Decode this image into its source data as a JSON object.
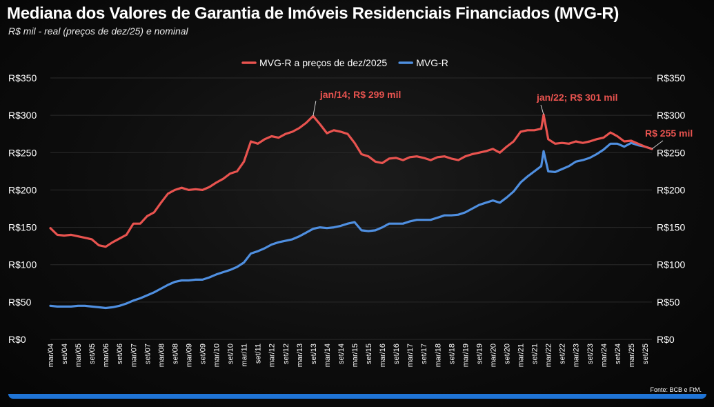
{
  "header": {
    "title": "Mediana dos Valores de Garantia de Imóveis Residenciais Financiados (MVG-R)",
    "subtitle": "R$ mil - real (preços de dez/25) e nominal"
  },
  "footer": {
    "source": "Fonte: BCB e FtM."
  },
  "colors": {
    "real": "#e8534f",
    "nominal": "#4f8fe0",
    "accent_bar": "#1f74d6"
  },
  "chart_data": {
    "type": "line",
    "title": "Mediana dos Valores de Garantia de Imóveis Residenciais Financiados (MVG-R)",
    "subtitle": "R$ mil - real (preços de dez/25) e nominal",
    "xlabel": "",
    "ylabel": "",
    "ylim": [
      0,
      350
    ],
    "yticks": [
      "R$0",
      "R$50",
      "R$100",
      "R$150",
      "R$200",
      "R$250",
      "R$300",
      "R$350"
    ],
    "yticks_values": [
      0,
      50,
      100,
      150,
      200,
      250,
      300,
      350
    ],
    "xlim": [
      "mar/04",
      "dez/25"
    ],
    "xticks": [
      "mar/04",
      "set/04",
      "mar/05",
      "set/05",
      "mar/06",
      "set/06",
      "mar/07",
      "set/07",
      "mar/08",
      "set/08",
      "mar/09",
      "set/09",
      "mar/10",
      "set/10",
      "mar/11",
      "set/11",
      "mar/12",
      "set/12",
      "mar/13",
      "set/13",
      "mar/14",
      "set/14",
      "mar/15",
      "set/15",
      "mar/16",
      "set/16",
      "mar/17",
      "set/17",
      "mar/18",
      "set/18",
      "mar/19",
      "set/19",
      "mar/20",
      "set/20",
      "mar/21",
      "set/21",
      "mar/22",
      "set/22",
      "mar/23",
      "set/23",
      "mar/24",
      "set/24",
      "mar/25",
      "set/25"
    ],
    "grid": true,
    "legend_position": "top-center",
    "series": [
      {
        "name": "MVG-R a preços de dez/2025",
        "color": "#e8534f",
        "points": [
          [
            "mar/04",
            149
          ],
          [
            "jun/04",
            140
          ],
          [
            "set/04",
            139
          ],
          [
            "dez/04",
            140
          ],
          [
            "mar/05",
            138
          ],
          [
            "jun/05",
            136
          ],
          [
            "set/05",
            134
          ],
          [
            "dez/05",
            126
          ],
          [
            "mar/06",
            124
          ],
          [
            "jun/06",
            130
          ],
          [
            "set/06",
            135
          ],
          [
            "dez/06",
            140
          ],
          [
            "mar/07",
            155
          ],
          [
            "jun/07",
            155
          ],
          [
            "set/07",
            165
          ],
          [
            "dez/07",
            170
          ],
          [
            "mar/08",
            183
          ],
          [
            "jun/08",
            195
          ],
          [
            "set/08",
            200
          ],
          [
            "dez/08",
            203
          ],
          [
            "mar/09",
            200
          ],
          [
            "jun/09",
            201
          ],
          [
            "set/09",
            200
          ],
          [
            "dez/09",
            204
          ],
          [
            "mar/10",
            210
          ],
          [
            "jun/10",
            215
          ],
          [
            "set/10",
            222
          ],
          [
            "dez/10",
            225
          ],
          [
            "mar/11",
            238
          ],
          [
            "jun/11",
            265
          ],
          [
            "set/11",
            262
          ],
          [
            "dez/11",
            268
          ],
          [
            "mar/12",
            272
          ],
          [
            "jun/12",
            270
          ],
          [
            "set/12",
            275
          ],
          [
            "dez/12",
            278
          ],
          [
            "mar/13",
            283
          ],
          [
            "jun/13",
            290
          ],
          [
            "set/13",
            299
          ],
          [
            "dez/13",
            288
          ],
          [
            "mar/14",
            276
          ],
          [
            "jun/14",
            280
          ],
          [
            "set/14",
            278
          ],
          [
            "dez/14",
            275
          ],
          [
            "mar/15",
            263
          ],
          [
            "jun/15",
            248
          ],
          [
            "set/15",
            245
          ],
          [
            "dez/15",
            238
          ],
          [
            "mar/16",
            236
          ],
          [
            "jun/16",
            242
          ],
          [
            "set/16",
            243
          ],
          [
            "dez/16",
            240
          ],
          [
            "mar/17",
            244
          ],
          [
            "jun/17",
            245
          ],
          [
            "set/17",
            243
          ],
          [
            "dez/17",
            240
          ],
          [
            "mar/18",
            244
          ],
          [
            "jun/18",
            245
          ],
          [
            "set/18",
            242
          ],
          [
            "dez/18",
            240
          ],
          [
            "mar/19",
            245
          ],
          [
            "jun/19",
            248
          ],
          [
            "set/19",
            250
          ],
          [
            "dez/19",
            252
          ],
          [
            "mar/20",
            255
          ],
          [
            "jun/20",
            250
          ],
          [
            "set/20",
            258
          ],
          [
            "dez/20",
            265
          ],
          [
            "mar/21",
            278
          ],
          [
            "jun/21",
            280
          ],
          [
            "set/21",
            280
          ],
          [
            "dez/21",
            282
          ],
          [
            "jan/22",
            301
          ],
          [
            "mar/22",
            268
          ],
          [
            "jun/22",
            262
          ],
          [
            "set/22",
            263
          ],
          [
            "dez/22",
            262
          ],
          [
            "mar/23",
            265
          ],
          [
            "jun/23",
            263
          ],
          [
            "set/23",
            265
          ],
          [
            "dez/23",
            268
          ],
          [
            "mar/24",
            270
          ],
          [
            "jun/24",
            277
          ],
          [
            "set/24",
            272
          ],
          [
            "dez/24",
            265
          ],
          [
            "mar/25",
            266
          ],
          [
            "jun/25",
            262
          ],
          [
            "set/25",
            258
          ],
          [
            "dez/25",
            255
          ]
        ]
      },
      {
        "name": "MVG-R",
        "color": "#4f8fe0",
        "points": [
          [
            "mar/04",
            45
          ],
          [
            "jun/04",
            44
          ],
          [
            "set/04",
            44
          ],
          [
            "dez/04",
            44
          ],
          [
            "mar/05",
            45
          ],
          [
            "jun/05",
            45
          ],
          [
            "set/05",
            44
          ],
          [
            "dez/05",
            43
          ],
          [
            "mar/06",
            42
          ],
          [
            "jun/06",
            43
          ],
          [
            "set/06",
            45
          ],
          [
            "dez/06",
            48
          ],
          [
            "mar/07",
            52
          ],
          [
            "jun/07",
            55
          ],
          [
            "set/07",
            59
          ],
          [
            "dez/07",
            63
          ],
          [
            "mar/08",
            68
          ],
          [
            "jun/08",
            73
          ],
          [
            "set/08",
            77
          ],
          [
            "dez/08",
            79
          ],
          [
            "mar/09",
            79
          ],
          [
            "jun/09",
            80
          ],
          [
            "set/09",
            80
          ],
          [
            "dez/09",
            83
          ],
          [
            "mar/10",
            87
          ],
          [
            "jun/10",
            90
          ],
          [
            "set/10",
            93
          ],
          [
            "dez/10",
            97
          ],
          [
            "mar/11",
            103
          ],
          [
            "jun/11",
            115
          ],
          [
            "set/11",
            118
          ],
          [
            "dez/11",
            122
          ],
          [
            "mar/12",
            127
          ],
          [
            "jun/12",
            130
          ],
          [
            "set/12",
            132
          ],
          [
            "dez/12",
            134
          ],
          [
            "mar/13",
            138
          ],
          [
            "jun/13",
            143
          ],
          [
            "set/13",
            148
          ],
          [
            "dez/13",
            150
          ],
          [
            "mar/14",
            149
          ],
          [
            "jun/14",
            150
          ],
          [
            "set/14",
            152
          ],
          [
            "dez/14",
            155
          ],
          [
            "mar/15",
            157
          ],
          [
            "jun/15",
            146
          ],
          [
            "set/15",
            145
          ],
          [
            "dez/15",
            146
          ],
          [
            "mar/16",
            150
          ],
          [
            "jun/16",
            155
          ],
          [
            "set/16",
            155
          ],
          [
            "dez/16",
            155
          ],
          [
            "mar/17",
            158
          ],
          [
            "jun/17",
            160
          ],
          [
            "set/17",
            160
          ],
          [
            "dez/17",
            160
          ],
          [
            "mar/18",
            163
          ],
          [
            "jun/18",
            166
          ],
          [
            "set/18",
            166
          ],
          [
            "dez/18",
            167
          ],
          [
            "mar/19",
            170
          ],
          [
            "jun/19",
            175
          ],
          [
            "set/19",
            180
          ],
          [
            "dez/19",
            183
          ],
          [
            "mar/20",
            186
          ],
          [
            "jun/20",
            183
          ],
          [
            "set/20",
            190
          ],
          [
            "dez/20",
            198
          ],
          [
            "mar/21",
            210
          ],
          [
            "jun/21",
            218
          ],
          [
            "set/21",
            225
          ],
          [
            "dez/21",
            232
          ],
          [
            "jan/22",
            252
          ],
          [
            "mar/22",
            225
          ],
          [
            "jun/22",
            224
          ],
          [
            "set/22",
            228
          ],
          [
            "dez/22",
            232
          ],
          [
            "mar/23",
            238
          ],
          [
            "jun/23",
            240
          ],
          [
            "set/23",
            243
          ],
          [
            "dez/23",
            248
          ],
          [
            "mar/24",
            254
          ],
          [
            "jun/24",
            262
          ],
          [
            "set/24",
            262
          ],
          [
            "dez/24",
            258
          ],
          [
            "mar/25",
            263
          ],
          [
            "jun/25",
            260
          ],
          [
            "set/25",
            258
          ],
          [
            "dez/25",
            255
          ]
        ]
      }
    ],
    "annotations": [
      {
        "text": "jan/14; R$ 299 mil",
        "series": "MVG-R a preços de dez/2025",
        "x": "set/13",
        "y": 299,
        "color": "#e8534f"
      },
      {
        "text": "jan/22; R$ 301 mil",
        "series": "MVG-R a preços de dez/2025",
        "x": "jan/22",
        "y": 301,
        "color": "#e8534f"
      },
      {
        "text": "R$ 255 mil",
        "series": "MVG-R a preços de dez/2025",
        "x": "dez/25",
        "y": 255,
        "color": "#e8534f"
      }
    ]
  }
}
